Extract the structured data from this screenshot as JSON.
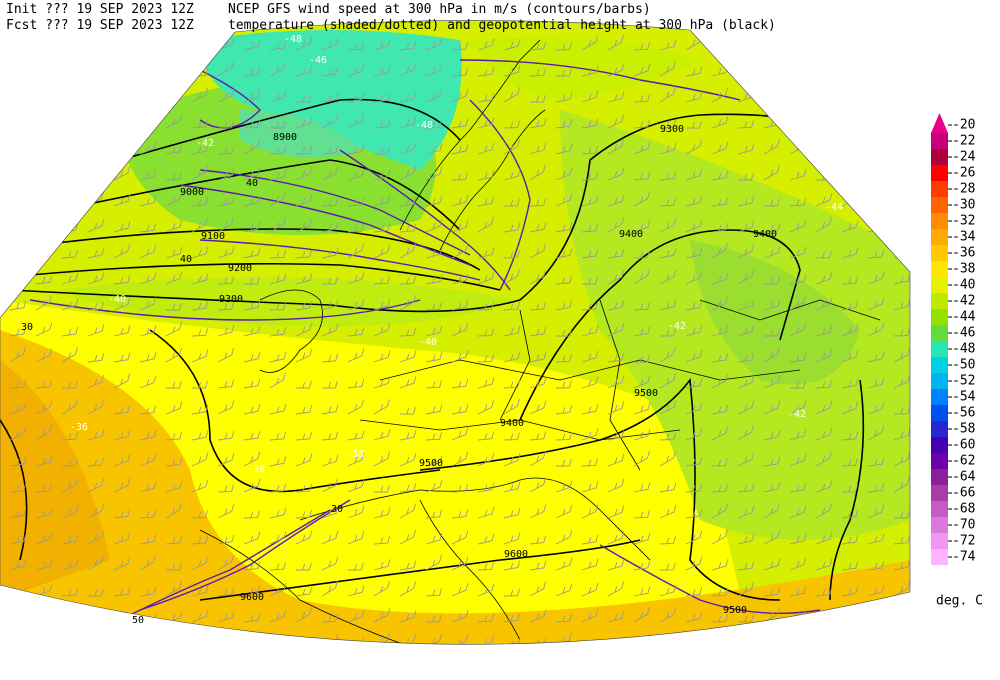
{
  "header": {
    "init": "Init  ??? 19 SEP 2023 12Z",
    "fcst": "Fcst ??? 19 SEP 2023 12Z",
    "title_1": "NCEP GFS wind speed at 300 hPa in m/s (contours/barbs)",
    "title_2": "temperature (shaded/dotted) and geopotential height at 300 hPa (black)"
  },
  "map_labels": [
    "8900",
    "9000",
    "9100",
    "9200",
    "9300",
    "9300",
    "9400",
    "9400",
    "9500",
    "9400",
    "9500",
    "9600",
    "9600",
    "9500",
    "-48",
    "-46",
    "-48",
    "-42",
    "-44",
    "-42",
    "-40",
    "-40",
    "-36",
    "-38",
    "-38",
    "-42",
    "-36",
    "30",
    "40",
    "40",
    "30",
    "50"
  ],
  "colorbar": {
    "labels": [
      -20,
      -22,
      -24,
      -26,
      -28,
      -30,
      -32,
      -34,
      -36,
      -38,
      -40,
      -42,
      -44,
      -46,
      -48,
      -50,
      -52,
      -54,
      -56,
      -58,
      -60,
      -62,
      -64,
      -66,
      -68,
      -70,
      -72,
      -74
    ],
    "colors": [
      "#e8008c",
      "#c8007a",
      "#b0003c",
      "#ff0000",
      "#ff3c00",
      "#ff6400",
      "#ff8c00",
      "#ffaa00",
      "#ffc800",
      "#ffe600",
      "#e6f000",
      "#c0e800",
      "#96e000",
      "#60dc3c",
      "#28e6b4",
      "#00d2e6",
      "#00b4f0",
      "#0082ff",
      "#0050f0",
      "#2828d2",
      "#4600b4",
      "#6e00aa",
      "#8c1e9b",
      "#aa3caa",
      "#c85ac8",
      "#dc78dc",
      "#f096f0",
      "#ffb4ff"
    ],
    "unit": "deg. C"
  }
}
